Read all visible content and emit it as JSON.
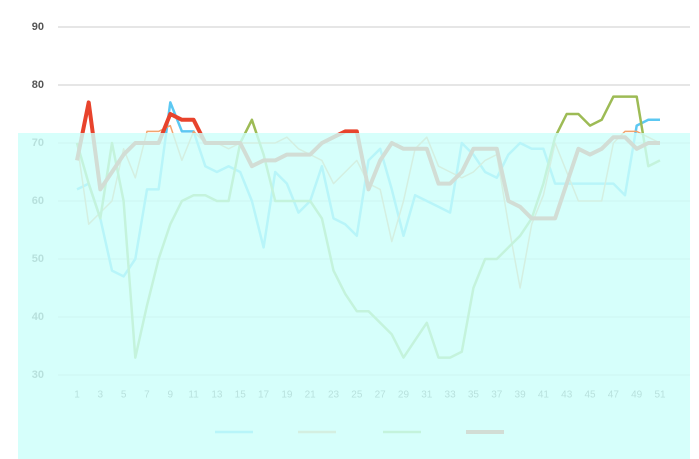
{
  "chart_data": {
    "type": "line",
    "categories": [
      1,
      null,
      3,
      null,
      5,
      null,
      7,
      null,
      9,
      null,
      11,
      null,
      13,
      null,
      15,
      null,
      17,
      null,
      19,
      null,
      21,
      null,
      23,
      null,
      25,
      null,
      27,
      null,
      29,
      null,
      31,
      null,
      33,
      null,
      35,
      null,
      37,
      null,
      39,
      null,
      41,
      null,
      43,
      null,
      45,
      null,
      47,
      null,
      49,
      null,
      51
    ],
    "series": [
      {
        "color": "#5cc8f2",
        "values": [
          62,
          63,
          57,
          48,
          47,
          50,
          62,
          62,
          77,
          72,
          72,
          66,
          65,
          66,
          65,
          60,
          52,
          65,
          63,
          58,
          60,
          66,
          57,
          56,
          54,
          67,
          69,
          62,
          54,
          61,
          60,
          59,
          58,
          70,
          68,
          65,
          64,
          68,
          70,
          69,
          69,
          63,
          63,
          63,
          63,
          63,
          63,
          61,
          73,
          74,
          74
        ]
      },
      {
        "color": "#f2a46e",
        "values": [
          70,
          56,
          58,
          60,
          69,
          64,
          72,
          72,
          73,
          67,
          72,
          70,
          70,
          69,
          70,
          70,
          70,
          70,
          71,
          69,
          68,
          67,
          63,
          65,
          67,
          63,
          62,
          53,
          60,
          69,
          71,
          66,
          65,
          64,
          65,
          67,
          68,
          56,
          45,
          56,
          61,
          70,
          65,
          60,
          60,
          60,
          70,
          72,
          72,
          71,
          70
        ]
      },
      {
        "color": "#9dbb55",
        "values": [
          70,
          63,
          57,
          70,
          60,
          33,
          42,
          50,
          56,
          60,
          61,
          61,
          60,
          60,
          70,
          74,
          68,
          60,
          60,
          60,
          60,
          57,
          48,
          44,
          41,
          41,
          39,
          37,
          33,
          36,
          39,
          33,
          33,
          34,
          45,
          50,
          50,
          52,
          54,
          57,
          63,
          71,
          75,
          75,
          73,
          74,
          78,
          78,
          78,
          66,
          67
        ]
      },
      {
        "color": "#e8432c",
        "values": [
          67,
          77,
          62,
          65,
          68,
          70,
          70,
          70,
          75,
          74,
          74,
          70,
          70,
          70,
          70,
          66,
          67,
          67,
          68,
          68,
          68,
          70,
          71,
          72,
          72,
          62,
          67,
          70,
          69,
          69,
          69,
          63,
          63,
          65,
          69,
          69,
          69,
          60,
          59,
          57,
          57,
          57,
          63,
          69,
          68,
          69,
          71,
          71,
          69,
          70,
          70
        ]
      }
    ],
    "ylim": [
      30,
      90
    ],
    "yticks": [
      30,
      40,
      50,
      60,
      70,
      80,
      90
    ],
    "grid": true
  }
}
